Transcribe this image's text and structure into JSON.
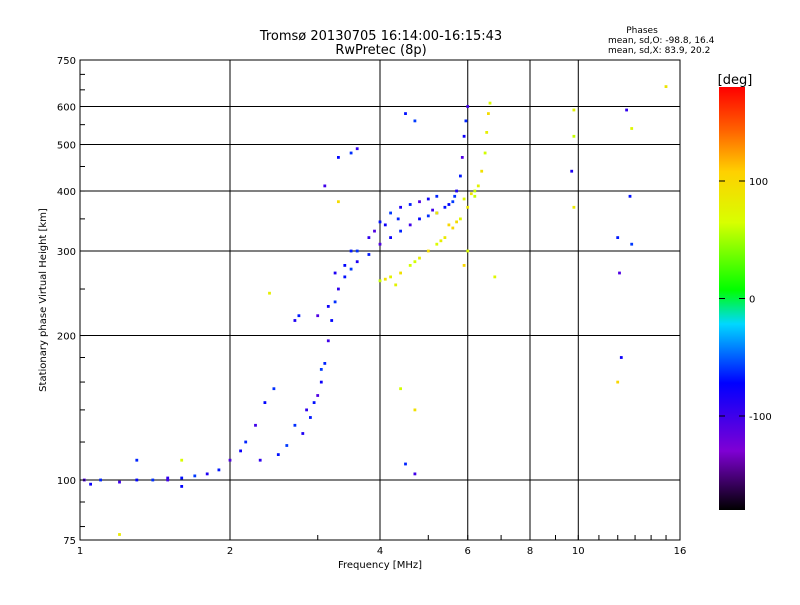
{
  "chart_data": {
    "type": "scatter",
    "title": "Tromsø 20130705 16:14:00-16:15:43",
    "subtitle": "RwPretec (8p)",
    "xlabel": "Frequency [MHz]",
    "ylabel": "Stationary phase Virtual Height [km]",
    "x_scale": "log",
    "y_scale": "log",
    "xlim": [
      1,
      16
    ],
    "ylim": [
      75,
      750
    ],
    "grid": true,
    "x_ticks": [
      "1",
      "2",
      "4",
      "6",
      "8",
      "10",
      "16"
    ],
    "y_ticks": [
      "75",
      "100",
      "200",
      "300",
      "400",
      "500",
      "600",
      "750"
    ],
    "stats": {
      "heading": "Phases",
      "o_line": "mean, sd,O: -98.8, 16.4",
      "x_line": "mean, sd,X: 83.9, 20.2"
    },
    "colorbar": {
      "label": "[deg]",
      "ticks": [
        "100",
        "0",
        "-100"
      ],
      "range": [
        -180,
        180
      ]
    },
    "series": [
      {
        "mode": "O",
        "phase_deg": -99,
        "points": [
          [
            1.02,
            100
          ],
          [
            1.05,
            98
          ],
          [
            1.1,
            100
          ],
          [
            1.2,
            99
          ],
          [
            1.3,
            100
          ],
          [
            1.4,
            100
          ],
          [
            1.5,
            101
          ],
          [
            1.6,
            101
          ],
          [
            1.7,
            102
          ],
          [
            1.8,
            103
          ],
          [
            1.9,
            105
          ],
          [
            2.0,
            110
          ],
          [
            2.1,
            115
          ],
          [
            2.15,
            120
          ],
          [
            2.25,
            130
          ],
          [
            2.35,
            145
          ],
          [
            2.45,
            155
          ],
          [
            2.3,
            110
          ],
          [
            2.5,
            113
          ],
          [
            2.6,
            118
          ],
          [
            2.8,
            125
          ],
          [
            2.9,
            135
          ],
          [
            3.0,
            150
          ],
          [
            3.05,
            160
          ],
          [
            3.1,
            175
          ],
          [
            3.15,
            195
          ],
          [
            3.2,
            215
          ],
          [
            3.25,
            235
          ],
          [
            3.3,
            250
          ],
          [
            3.4,
            265
          ],
          [
            3.5,
            275
          ],
          [
            3.6,
            285
          ],
          [
            3.8,
            295
          ],
          [
            4.0,
            310
          ],
          [
            4.2,
            320
          ],
          [
            4.4,
            330
          ],
          [
            4.6,
            340
          ],
          [
            4.8,
            350
          ],
          [
            5.0,
            355
          ],
          [
            5.2,
            360
          ],
          [
            5.4,
            370
          ],
          [
            5.6,
            380
          ],
          [
            5.7,
            400
          ],
          [
            5.8,
            430
          ],
          [
            5.85,
            470
          ],
          [
            5.9,
            520
          ],
          [
            5.95,
            560
          ],
          [
            6.0,
            600
          ],
          [
            3.4,
            280
          ],
          [
            3.6,
            300
          ],
          [
            3.8,
            320
          ],
          [
            4.0,
            345
          ],
          [
            4.2,
            360
          ],
          [
            4.4,
            370
          ],
          [
            4.6,
            375
          ],
          [
            4.8,
            380
          ],
          [
            5.0,
            385
          ],
          [
            5.2,
            390
          ],
          [
            3.1,
            410
          ],
          [
            3.3,
            470
          ],
          [
            3.5,
            480
          ],
          [
            3.6,
            490
          ],
          [
            4.5,
            580
          ],
          [
            4.7,
            560
          ],
          [
            2.7,
            215
          ],
          [
            2.75,
            220
          ],
          [
            3.0,
            220
          ],
          [
            3.15,
            230
          ],
          [
            1.3,
            110
          ],
          [
            1.5,
            100
          ],
          [
            1.6,
            97
          ],
          [
            2.7,
            130
          ],
          [
            2.85,
            140
          ],
          [
            2.95,
            145
          ],
          [
            3.05,
            170
          ],
          [
            3.25,
            270
          ],
          [
            3.5,
            300
          ],
          [
            3.9,
            330
          ],
          [
            4.1,
            340
          ],
          [
            4.35,
            350
          ],
          [
            5.1,
            365
          ],
          [
            5.5,
            375
          ],
          [
            5.65,
            390
          ],
          [
            12.5,
            590
          ],
          [
            12.7,
            390
          ],
          [
            12.8,
            310
          ],
          [
            9.7,
            440
          ],
          [
            12.0,
            320
          ],
          [
            12.1,
            270
          ],
          [
            12.2,
            180
          ],
          [
            4.5,
            108
          ],
          [
            4.7,
            103
          ]
        ]
      },
      {
        "mode": "X",
        "phase_deg": 84,
        "points": [
          [
            4.0,
            260
          ],
          [
            4.2,
            265
          ],
          [
            4.4,
            270
          ],
          [
            4.6,
            280
          ],
          [
            4.8,
            290
          ],
          [
            5.0,
            300
          ],
          [
            5.2,
            310
          ],
          [
            5.4,
            320
          ],
          [
            5.6,
            335
          ],
          [
            5.8,
            350
          ],
          [
            6.0,
            370
          ],
          [
            6.2,
            390
          ],
          [
            6.3,
            410
          ],
          [
            6.4,
            440
          ],
          [
            6.5,
            480
          ],
          [
            6.55,
            530
          ],
          [
            6.6,
            580
          ],
          [
            6.65,
            610
          ],
          [
            5.2,
            360
          ],
          [
            5.5,
            340
          ],
          [
            5.9,
            385
          ],
          [
            6.1,
            395
          ],
          [
            6.2,
            400
          ],
          [
            4.3,
            255
          ],
          [
            4.1,
            262
          ],
          [
            4.7,
            285
          ],
          [
            5.3,
            315
          ],
          [
            5.7,
            345
          ],
          [
            6.0,
            300
          ],
          [
            9.8,
            370
          ],
          [
            12.0,
            160
          ],
          [
            12.8,
            540
          ],
          [
            15.0,
            660
          ],
          [
            9.8,
            520
          ],
          [
            9.8,
            590
          ],
          [
            4.7,
            140
          ],
          [
            4.4,
            155
          ],
          [
            2.4,
            245
          ],
          [
            3.3,
            380
          ],
          [
            1.6,
            110
          ],
          [
            1.2,
            77
          ],
          [
            5.9,
            280
          ],
          [
            6.8,
            265
          ]
        ]
      }
    ]
  }
}
